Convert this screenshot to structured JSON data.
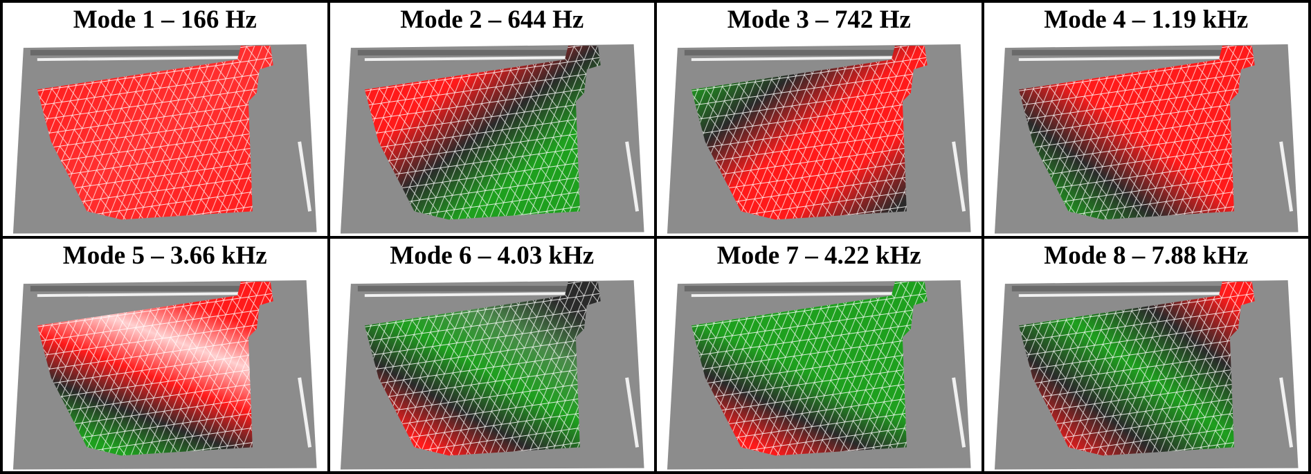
{
  "panels": [
    {
      "title": "Mode 1 – 166 Hz"
    },
    {
      "title": "Mode 2 – 644 Hz"
    },
    {
      "title": "Mode 3 – 742 Hz"
    },
    {
      "title": "Mode 4 – 1.19 kHz"
    },
    {
      "title": "Mode 5 – 3.66 kHz"
    },
    {
      "title": "Mode 6 – 4.03 kHz"
    },
    {
      "title": "Mode 7 – 4.22 kHz"
    },
    {
      "title": "Mode 8 – 7.88 kHz"
    }
  ]
}
